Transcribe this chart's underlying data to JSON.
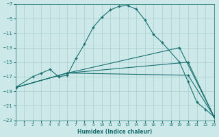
{
  "xlabel": "Humidex (Indice chaleur)",
  "bg_color": "#cce8e8",
  "grid_color": "#aacfcf",
  "line_color": "#1a7070",
  "xlim": [
    0,
    23
  ],
  "ylim": [
    -23,
    -7
  ],
  "xticks": [
    0,
    1,
    2,
    3,
    4,
    5,
    6,
    7,
    8,
    9,
    10,
    11,
    12,
    13,
    14,
    15,
    16,
    17,
    18,
    19,
    20,
    21,
    22,
    23
  ],
  "yticks": [
    -23,
    -21,
    -19,
    -17,
    -15,
    -13,
    -11,
    -9,
    -7
  ],
  "line1_x": [
    0,
    2,
    3,
    4,
    5,
    6,
    7,
    8,
    9,
    10,
    11,
    12,
    13,
    14,
    15,
    16,
    17,
    19,
    20,
    21,
    22,
    23
  ],
  "line1_y": [
    -18.5,
    -17,
    -16.5,
    -16.0,
    -17.0,
    -16.8,
    -14.5,
    -12.5,
    -10.2,
    -8.8,
    -7.8,
    -7.3,
    -7.2,
    -7.7,
    -9.2,
    -11.2,
    -12.3,
    -15.0,
    -17.7,
    -20.5,
    -21.5,
    -22.5
  ],
  "line2_x": [
    0,
    6,
    20,
    23
  ],
  "line2_y": [
    -18.5,
    -16.5,
    -15.0,
    -22.5
  ],
  "line3_x": [
    0,
    6,
    19,
    23
  ],
  "line3_y": [
    -18.5,
    -16.5,
    -13.0,
    -22.5
  ],
  "line4_x": [
    0,
    6,
    20,
    23
  ],
  "line4_y": [
    -18.5,
    -16.5,
    -16.8,
    -22.5
  ]
}
